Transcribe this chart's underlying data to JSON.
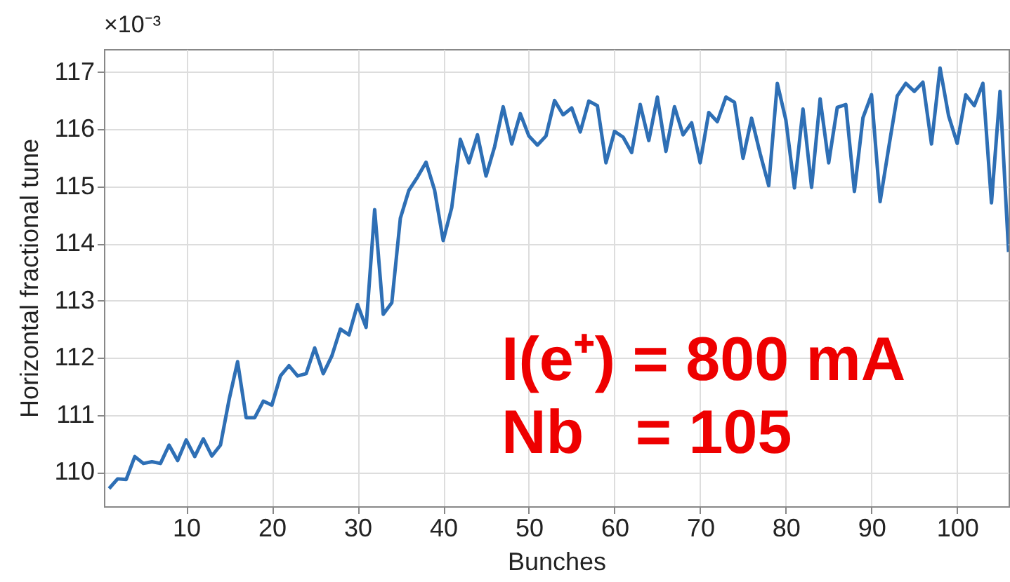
{
  "chart_data": {
    "type": "line",
    "xlabel": "Bunches",
    "ylabel": "Horizontal fractional tune",
    "annotations": [
      "×10⁻³",
      "I(e⁺) = 800 mA",
      "Nb   = 105"
    ],
    "x": [
      1,
      2,
      3,
      4,
      5,
      6,
      7,
      8,
      9,
      10,
      11,
      12,
      13,
      14,
      15,
      16,
      17,
      18,
      19,
      20,
      21,
      22,
      23,
      24,
      25,
      26,
      27,
      28,
      29,
      30,
      31,
      32,
      33,
      34,
      35,
      36,
      37,
      38,
      39,
      40,
      41,
      42,
      43,
      44,
      45,
      46,
      47,
      48,
      49,
      50,
      51,
      52,
      53,
      54,
      55,
      56,
      57,
      58,
      59,
      60,
      61,
      62,
      63,
      64,
      65,
      66,
      67,
      68,
      69,
      70,
      71,
      72,
      73,
      74,
      75,
      76,
      77,
      78,
      79,
      80,
      81,
      82,
      83,
      84,
      85,
      86,
      87,
      88,
      89,
      90,
      91,
      92,
      93,
      94,
      95,
      96,
      97,
      98,
      99,
      100,
      101,
      102,
      103,
      104,
      105,
      106
    ],
    "series": [
      {
        "color": "#2e6fb5",
        "values": [
          109.71,
          109.88,
          109.87,
          110.27,
          110.15,
          110.18,
          110.15,
          110.47,
          110.2,
          110.56,
          110.27,
          110.58,
          110.28,
          110.47,
          111.26,
          111.93,
          110.95,
          110.95,
          111.24,
          111.17,
          111.68,
          111.86,
          111.68,
          111.72,
          112.17,
          111.72,
          112.03,
          112.5,
          112.4,
          112.93,
          112.53,
          114.59,
          112.76,
          112.96,
          114.44,
          114.93,
          115.16,
          115.42,
          114.93,
          114.05,
          114.63,
          115.82,
          115.41,
          115.9,
          115.18,
          115.69,
          116.39,
          115.74,
          116.27,
          115.88,
          115.72,
          115.88,
          116.5,
          116.25,
          116.37,
          115.95,
          116.49,
          116.41,
          115.41,
          115.96,
          115.86,
          115.59,
          116.43,
          115.8,
          116.56,
          115.61,
          116.39,
          115.9,
          116.11,
          115.41,
          116.29,
          116.13,
          116.56,
          116.47,
          115.49,
          116.19,
          115.57,
          115.01,
          116.8,
          116.16,
          114.97,
          116.35,
          114.98,
          116.53,
          115.41,
          116.38,
          116.43,
          114.91,
          116.2,
          116.6,
          114.73,
          115.67,
          116.58,
          116.8,
          116.66,
          116.82,
          115.74,
          117.07,
          116.23,
          115.75,
          116.6,
          116.41,
          116.8,
          114.71,
          116.66,
          113.85
        ]
      }
    ],
    "xlim": [
      0.4,
      106
    ],
    "xticks": [
      10,
      20,
      30,
      40,
      50,
      60,
      70,
      80,
      90,
      100
    ],
    "ylim": [
      109.4,
      117.4
    ],
    "yticks": [
      110,
      111,
      112,
      113,
      114,
      115,
      116,
      117
    ],
    "grid": true,
    "marker": "none",
    "line_style": "solid"
  }
}
